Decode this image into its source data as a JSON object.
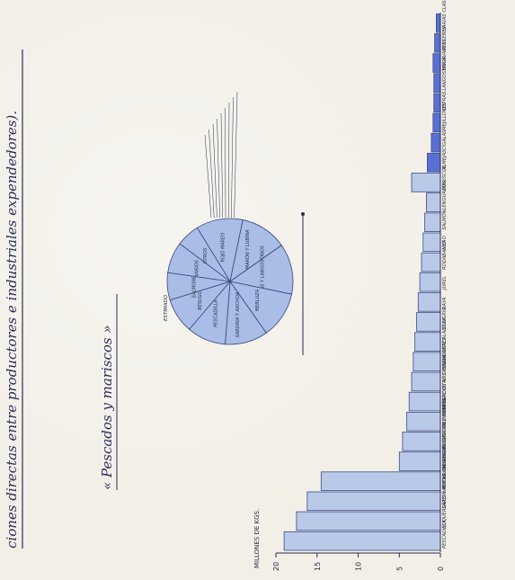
{
  "chart_data": [
    {
      "type": "bar",
      "orientation": "horizontal",
      "title": "",
      "main_label": "ciones directas entre productores e industriales expendedores).",
      "section_label": "« Pescados y mariscos »",
      "xlabel": "MILLONES DE KGS.",
      "ylabel": "",
      "xlim": [
        0,
        20
      ],
      "ticks": [
        0,
        5,
        10,
        15,
        20
      ],
      "ticks_text": [
        "0",
        "5",
        "10",
        "15",
        "20"
      ],
      "categories": [
        "PESCADILLA",
        "BOQUERONES Y ANCHOAS",
        "SARDINAS Y LA. GALLEGAS LOTS",
        "POTAS CALAMARES CHOCOS Y PULPOS",
        "MERLUZA - - -",
        "BESUGO DEL CANTÁBRICO",
        "PALOMETA - -",
        "PESCADOS AS DE CALA",
        "OTROS PESCADOS",
        "SALMONETES",
        "BACALADILLA",
        "CONGRIO",
        "RAYA",
        "JUREL",
        "RODABALLO",
        "MERO",
        "SALMÓN",
        "LENGUADOS",
        "MARISCOS",
        "ALMEJAS",
        "CIGALAS",
        "MEJILLONES",
        "OSTRAS",
        "LANGOSTINOS",
        "BOGAVANTES",
        "PERCEBES",
        "VARIAS CLASES"
      ],
      "values": [
        19.0,
        17.5,
        16.2,
        14.5,
        5.0,
        4.6,
        4.1,
        3.8,
        3.5,
        3.3,
        3.1,
        2.9,
        2.7,
        2.5,
        2.3,
        2.1,
        1.9,
        1.7,
        3.5,
        1.6,
        1.1,
        0.9,
        0.8,
        0.8,
        0.9,
        0.7,
        0.5
      ],
      "colors": {
        "light": "#b9c9e8",
        "dark": "#5a6fd3",
        "outline": "#3c4b8a"
      }
    },
    {
      "type": "pie",
      "labels": [
        "ROJO MAREO",
        "CAMARÓN Y LUBINA",
        "GAMBAS Y LANGOSTINOS",
        "MERLUZA",
        "SARDINA Y ANCHOA",
        "PESCADILLA",
        "BESUGO",
        "SALMONETE",
        "VARIOS",
        "OTROS"
      ],
      "values": [
        12,
        12,
        13,
        12,
        11,
        10,
        9,
        7,
        8,
        6
      ],
      "note_label": "ESTIMADO",
      "colors": {
        "fill": "#a9bde6",
        "stroke": "#39477f"
      }
    }
  ]
}
